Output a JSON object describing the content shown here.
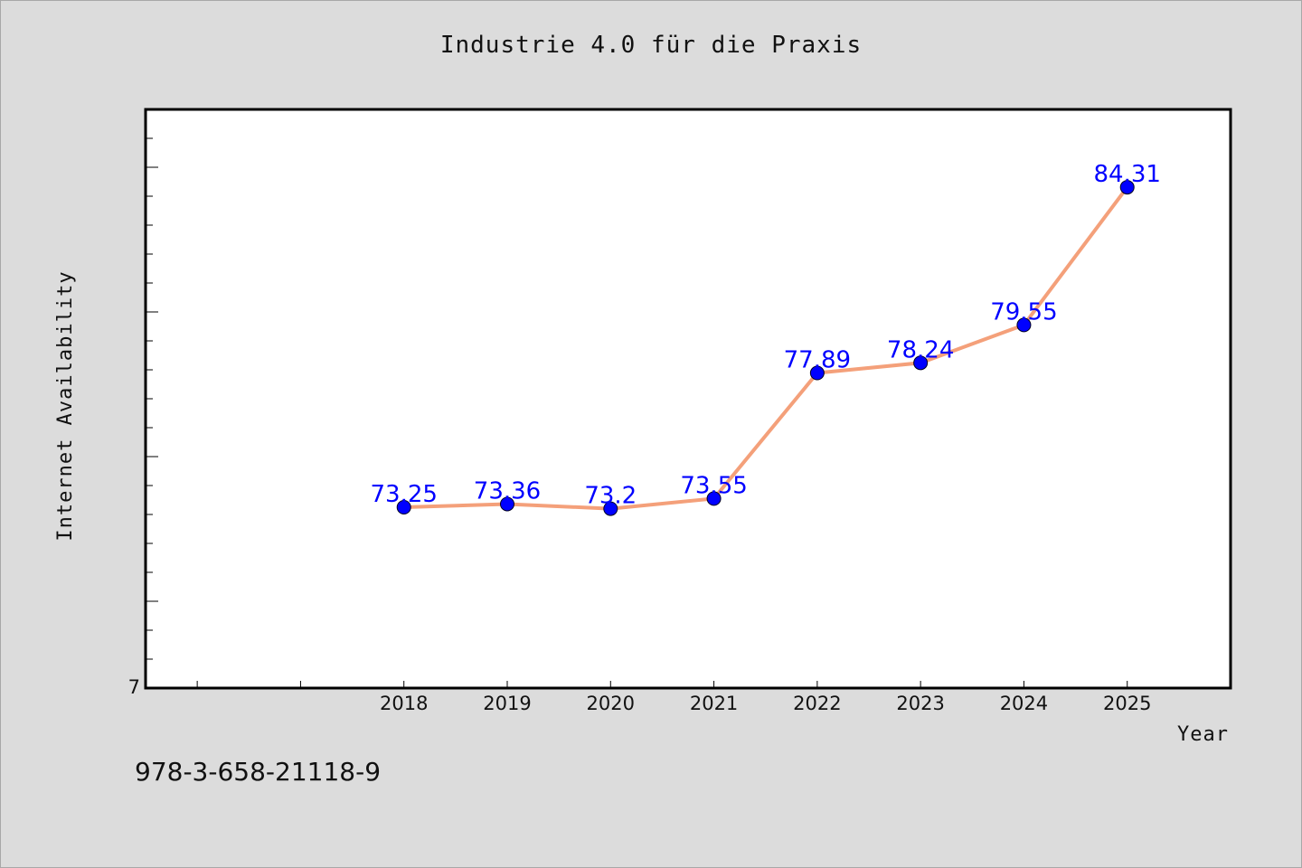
{
  "footer": {
    "isbn": "978-3-658-21118-9"
  },
  "colors": {
    "background": "#dcdcdc",
    "plot_background": "#ffffff",
    "line": "#f4a07a",
    "marker": "#0000ff",
    "data_label": "#0000ff"
  },
  "chart_data": {
    "type": "line",
    "title": "Industrie 4.0 für die Praxis",
    "xlabel": "Year",
    "ylabel": "Internet Availability",
    "x": [
      2018,
      2019,
      2020,
      2021,
      2022,
      2023,
      2024,
      2025
    ],
    "series": [
      {
        "values": [
          73.25,
          73.36,
          73.2,
          73.55,
          77.89,
          78.24,
          79.55,
          84.31
        ]
      }
    ],
    "data_labels": [
      "73.25",
      "73.36",
      "73.2",
      "73.55",
      "77.89",
      "78.24",
      "79.55",
      "84.31"
    ],
    "xlim": [
      2015.5,
      2026.0
    ],
    "ylim": [
      67.0,
      87.0
    ],
    "y_tick_label": "7",
    "grid": false,
    "legend": "none"
  }
}
